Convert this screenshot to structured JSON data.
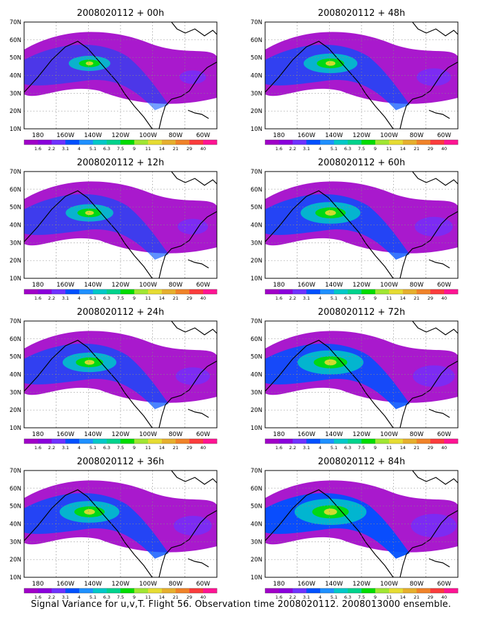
{
  "figure": {
    "caption": "Signal Variance for u,v,T. Flight 56. Observation time 2008020112. 2008013000 ensemble.",
    "lat_labels": [
      "70N",
      "60N",
      "50N",
      "40N",
      "30N",
      "20N",
      "10N"
    ],
    "lon_labels": [
      "180",
      "160W",
      "140W",
      "120W",
      "100W",
      "80W",
      "60W"
    ],
    "colorbar": {
      "labels": [
        "1.6",
        "2.2",
        "3.1",
        "4",
        "5.1",
        "6.3",
        "7.5",
        "9",
        "11",
        "14",
        "21",
        "29",
        "40"
      ],
      "colors": [
        "#a000c8",
        "#8a00dc",
        "#6e32ff",
        "#0050ff",
        "#1e90ff",
        "#00c8c8",
        "#00d28c",
        "#00dc00",
        "#a0e632",
        "#e6dc32",
        "#e6af2d",
        "#f08228",
        "#fa3c3c",
        "#ff1493"
      ]
    },
    "panels": [
      {
        "title": "2008020112 + 00h"
      },
      {
        "title": "2008020112 + 48h"
      },
      {
        "title": "2008020112 + 12h"
      },
      {
        "title": "2008020112 + 60h"
      },
      {
        "title": "2008020112 + 24h"
      },
      {
        "title": "2008020112 + 72h"
      },
      {
        "title": "2008020112 + 36h"
      },
      {
        "title": "2008020112 + 84h"
      }
    ]
  }
}
